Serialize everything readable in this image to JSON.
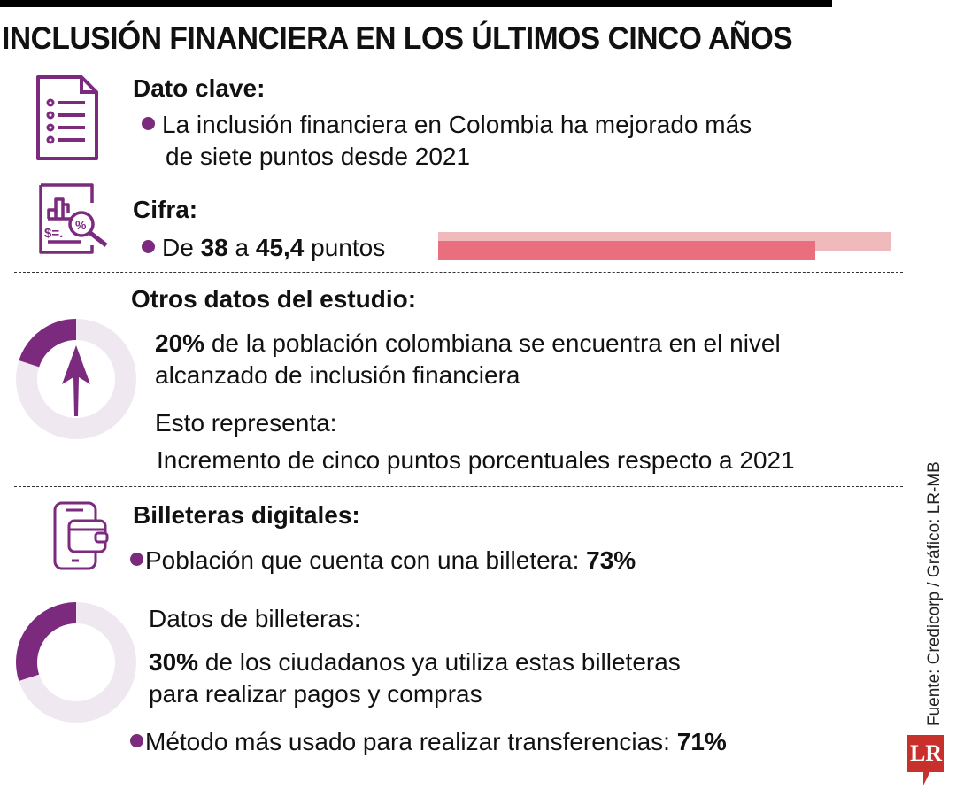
{
  "title": "INCLUSIÓN FINANCIERA EN LOS ÚLTIMOS CINCO AÑOS",
  "accent_color": "#7b2a7e",
  "sections": {
    "dato_clave": {
      "icon": "document-list-icon",
      "heading": "Dato clave:",
      "line1": "La inclusión financiera en Colombia ha mejorado más",
      "line2": "de siete puntos desde 2021"
    },
    "cifra": {
      "icon": "chart-magnifier-percent-icon",
      "heading": "Cifra:",
      "prefix": "De ",
      "value_from": "38",
      "middle": " a ",
      "value_to": "45,4",
      "suffix": " puntos",
      "bar": {
        "from": 38,
        "to": 45.4,
        "from_color": "#e96e7e",
        "to_color": "#f0b9bb"
      }
    },
    "otros": {
      "heading": "Otros datos del estudio:",
      "donut_percent": 20,
      "pct": "20%",
      "line1": " de la población colombiana se encuentra en el nivel",
      "line2": "alcanzado de inclusión financiera",
      "sub_heading": "Esto representa:",
      "sub_text": "Incremento de cinco puntos porcentuales respecto a 2021"
    },
    "billeteras": {
      "icon": "phone-wallet-icon",
      "heading": "Billeteras digitales:",
      "line": "Población que cuenta con una billetera: ",
      "pct": "73%"
    },
    "datos_billeteras": {
      "heading": "Datos de billeteras:",
      "donut_percent": 30,
      "pct": "30%",
      "line1": " de los ciudadanos ya utiliza estas billeteras",
      "line2": "para realizar pagos y compras",
      "method_line": "Método más usado para realizar transferencias: ",
      "method_pct": "71%"
    }
  },
  "credit": "Fuente: Credicorp  / Gráfico: LR-MB",
  "logo": "LR"
}
